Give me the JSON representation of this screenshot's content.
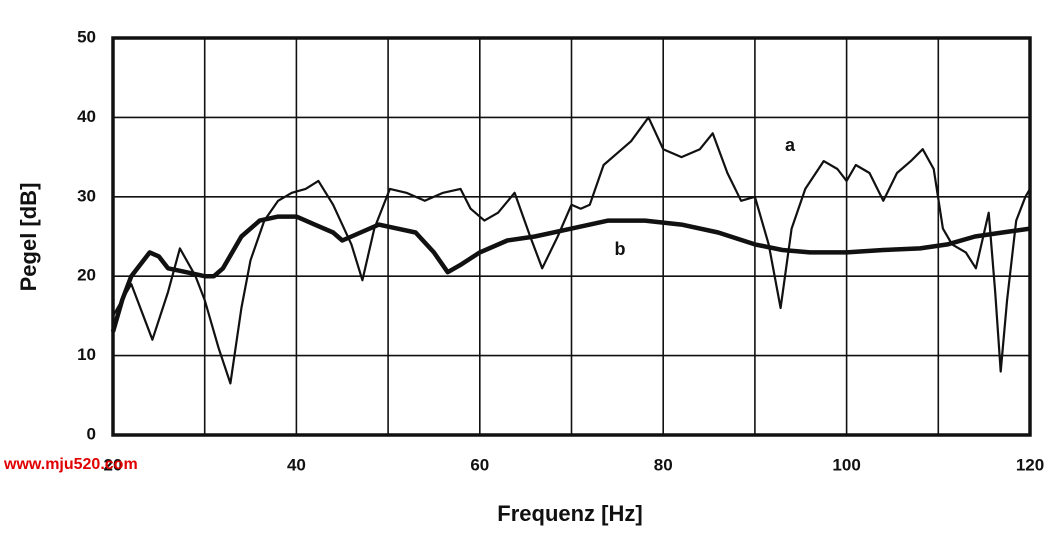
{
  "chart_data": {
    "type": "line",
    "xlabel": "Frequenz  [Hz]",
    "ylabel": "Pegel [dB]",
    "xlim": [
      20,
      120
    ],
    "xticks": [
      20,
      40,
      60,
      80,
      100,
      120
    ],
    "xgrid": [
      20,
      30,
      40,
      50,
      60,
      70,
      80,
      90,
      100,
      110,
      120
    ],
    "ylim": [
      0,
      50
    ],
    "yticks": [
      0,
      10,
      20,
      30,
      40,
      50
    ],
    "grid": true,
    "watermark": "www.mju520.com",
    "series": [
      {
        "name": "a",
        "color": "#111111",
        "x": [
          20,
          22,
          24.3,
          26,
          27.3,
          29,
          30,
          31.5,
          32.8,
          34,
          35,
          36.5,
          38,
          39.5,
          41,
          42.4,
          44,
          46,
          47.2,
          48.5,
          50.2,
          52,
          54,
          56,
          57.9,
          59,
          60.5,
          62,
          63.8,
          65.5,
          66.8,
          68.5,
          70,
          71,
          72,
          73.5,
          75,
          76.5,
          78.4,
          80,
          82,
          84,
          85.4,
          87,
          88.5,
          90,
          91.5,
          92.8,
          94,
          95.5,
          97.5,
          99,
          100,
          101,
          102.5,
          104,
          105.5,
          107,
          108.3,
          109.5,
          110.5,
          111.5,
          113,
          114.1,
          115.5,
          116.2,
          116.8,
          117.5,
          118.5,
          119.5,
          120
        ],
        "values": [
          15,
          19,
          12,
          18,
          23.5,
          20,
          17,
          11,
          6.5,
          16,
          22,
          27,
          29.5,
          30.5,
          31,
          32,
          29,
          24,
          19.5,
          26,
          31,
          30.5,
          29.5,
          30.5,
          31,
          28.5,
          27,
          28,
          30.5,
          25,
          21,
          25,
          29,
          28.5,
          29,
          34,
          35.5,
          37,
          40,
          36,
          35,
          36,
          38,
          33,
          29.5,
          30,
          24,
          16,
          26,
          31,
          34.5,
          33.5,
          32,
          34,
          33,
          29.5,
          33,
          34.5,
          36,
          33.5,
          26,
          24,
          23,
          21,
          28,
          18,
          8,
          17,
          27,
          30,
          31
        ]
      },
      {
        "name": "b",
        "color": "#111111",
        "x": [
          20,
          21,
          22,
          24,
          25,
          26,
          28,
          30,
          31,
          32,
          34,
          36,
          38,
          40,
          42,
          44,
          45,
          47,
          49,
          51,
          53,
          55,
          56.5,
          58,
          60,
          63,
          66,
          70,
          74,
          78,
          82,
          86,
          90,
          93,
          96,
          100,
          104,
          108,
          111,
          114,
          117,
          120
        ],
        "values": [
          13,
          17,
          20,
          23,
          22.5,
          21,
          20.5,
          20,
          20,
          21,
          25,
          27,
          27.5,
          27.5,
          26.5,
          25.5,
          24.5,
          25.5,
          26.5,
          26,
          25.5,
          23,
          20.5,
          21.5,
          23,
          24.5,
          25,
          26,
          27,
          27,
          26.5,
          25.5,
          24,
          23.3,
          23,
          23,
          23.3,
          23.5,
          24,
          25,
          25.5,
          26
        ]
      }
    ]
  }
}
